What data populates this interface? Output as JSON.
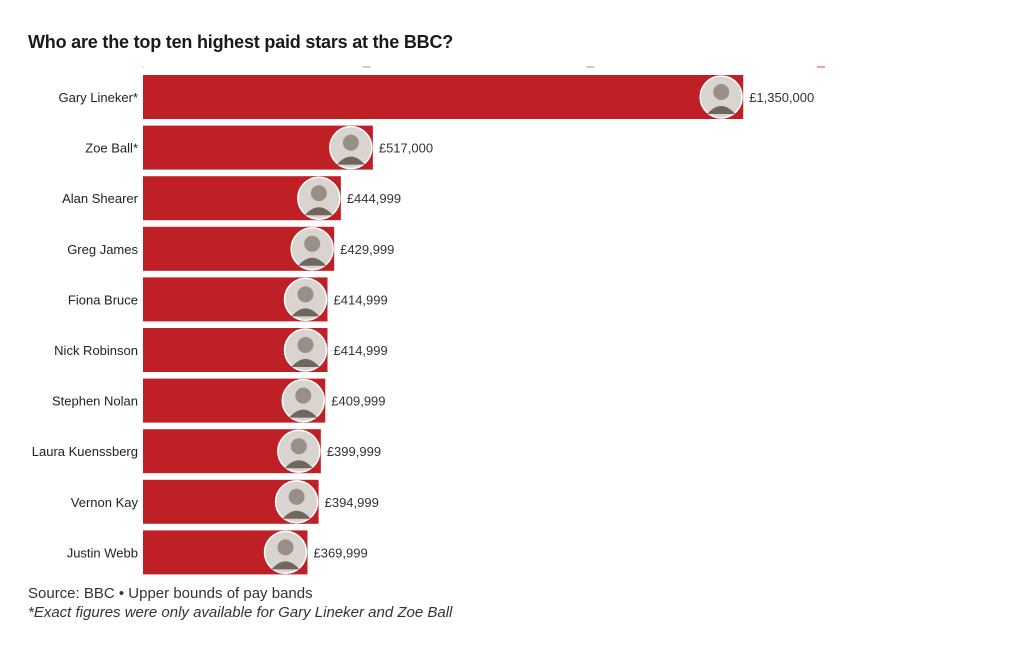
{
  "chart_data": {
    "type": "bar",
    "orientation": "horizontal",
    "title": "Who are the top ten highest paid stars at the BBC?",
    "categories": [
      "Gary Lineker*",
      "Zoe Ball*",
      "Alan Shearer",
      "Greg James",
      "Fiona Bruce",
      "Nick Robinson",
      "Stephen Nolan",
      "Laura Kuenssberg",
      "Vernon Kay",
      "Justin Webb"
    ],
    "values": [
      1350000,
      517000,
      444999,
      429999,
      414999,
      414999,
      409999,
      399999,
      394999,
      369999
    ],
    "value_labels": [
      "£1,350,000",
      "£517,000",
      "£444,999",
      "£429,999",
      "£414,999",
      "£414,999",
      "£409,999",
      "£399,999",
      "£394,999",
      "£369,999"
    ],
    "xlim": [
      0,
      1525000
    ],
    "bar_color": "#bf2026",
    "grid": false,
    "legend": "none"
  },
  "footer": {
    "source": "Source: BBC • Upper bounds of pay bands",
    "note": "*Exact figures were only available for Gary Lineker and Zoe Ball"
  }
}
